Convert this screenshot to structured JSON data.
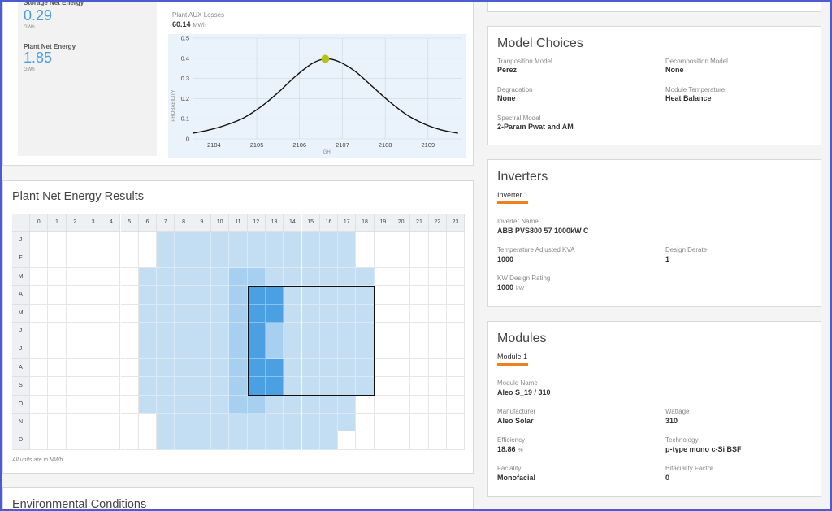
{
  "top_stats": {
    "storage_label": "Storage Net Energy",
    "storage_value": "0.29",
    "storage_unit": "GWh",
    "plant_label": "Plant Net Energy",
    "plant_value": "1.85",
    "plant_unit": "GWh"
  },
  "aux": {
    "label": "Plant AUX Losses",
    "value": "60.14",
    "unit": "MWh"
  },
  "chart_data": {
    "type": "line",
    "xlabel": "GHI",
    "ylabel": "PROBABILITY",
    "x_ticks": [
      "2104",
      "2105",
      "2106",
      "2107",
      "2108",
      "2109"
    ],
    "y_ticks": [
      "0",
      "0.1",
      "0.2",
      "0.3",
      "0.4",
      "0.5"
    ],
    "xlim": [
      2103.5,
      2109.8
    ],
    "ylim": [
      0,
      0.5
    ],
    "grid": true,
    "series": [
      {
        "x": [
          2103.5,
          2103.9,
          2104.3,
          2104.7,
          2105.1,
          2105.5,
          2105.9,
          2106.3,
          2106.6,
          2106.9,
          2107.3,
          2107.7,
          2108.1,
          2108.5,
          2108.9,
          2109.3,
          2109.7
        ],
        "values": [
          0.028,
          0.045,
          0.07,
          0.105,
          0.16,
          0.23,
          0.31,
          0.375,
          0.397,
          0.385,
          0.335,
          0.26,
          0.185,
          0.12,
          0.075,
          0.045,
          0.028
        ]
      }
    ],
    "highlight_point": {
      "x": 2106.6,
      "y": 0.397
    },
    "colors": {
      "line": "#111111",
      "point": "#b4c21a",
      "plot_bg": "#eaf3fb"
    }
  },
  "heatmap": {
    "title": "Plant Net Energy Results",
    "hours": [
      "0",
      "1",
      "2",
      "3",
      "4",
      "5",
      "6",
      "7",
      "8",
      "9",
      "10",
      "11",
      "12",
      "13",
      "14",
      "15",
      "16",
      "17",
      "18",
      "19",
      "20",
      "21",
      "22",
      "23"
    ],
    "months": [
      "J",
      "F",
      "M",
      "A",
      "M",
      "J",
      "J",
      "A",
      "S",
      "O",
      "N",
      "D"
    ],
    "note": "All units are in MWh.",
    "ranges": [
      [
        7,
        18
      ],
      [
        7,
        18
      ],
      [
        6,
        19
      ],
      [
        6,
        19
      ],
      [
        6,
        19
      ],
      [
        6,
        19
      ],
      [
        6,
        19
      ],
      [
        6,
        19
      ],
      [
        6,
        19
      ],
      [
        6,
        18
      ],
      [
        7,
        18
      ],
      [
        7,
        17
      ]
    ],
    "colors": {
      "light": "#c3ddf3",
      "medium": "#a6cff0",
      "dark": "#4b9fe3",
      "selection": "#111111"
    }
  },
  "env": {
    "title": "Environmental Conditions"
  },
  "model_choices": {
    "title": "Model Choices",
    "items": [
      {
        "label": "Tranposition Model",
        "value": "Perez"
      },
      {
        "label": "Decomposition Model",
        "value": "None"
      },
      {
        "label": "Degradation",
        "value": "None"
      },
      {
        "label": "Module Temperature",
        "value": "Heat Balance"
      },
      {
        "label": "Spectral Model",
        "value": "2-Param Pwat and AM"
      }
    ]
  },
  "inverters": {
    "title": "Inverters",
    "tab": "Inverter 1",
    "name_label": "Inverter Name",
    "name_value": "ABB PVS800 57 1000kW C",
    "kva_label": "Temperature Adjusted KVA",
    "kva_value": "1000",
    "derate_label": "Design Derate",
    "derate_value": "1",
    "kw_label": "KW Design Rating",
    "kw_value": "1000",
    "kw_unit": "kW"
  },
  "modules": {
    "title": "Modules",
    "tab": "Module 1",
    "name_label": "Module Name",
    "name_value": "Aleo S_19 / 310",
    "manufacturer_label": "Manufacturer",
    "manufacturer_value": "Aleo Solar",
    "wattage_label": "Wattage",
    "wattage_value": "310",
    "efficiency_label": "Efficiency",
    "efficiency_value": "18.86",
    "efficiency_unit": "%",
    "technology_label": "Technology",
    "technology_value": "p-type mono c-Si BSF",
    "faciality_label": "Faciality",
    "faciality_value": "Monofacial",
    "bifaciality_label": "Bifaciality Factor",
    "bifaciality_value": "0"
  },
  "colors": {
    "accent_orange": "#f07f1e",
    "value_blue": "#4a9ee0",
    "frame": "#4a5bd4"
  }
}
